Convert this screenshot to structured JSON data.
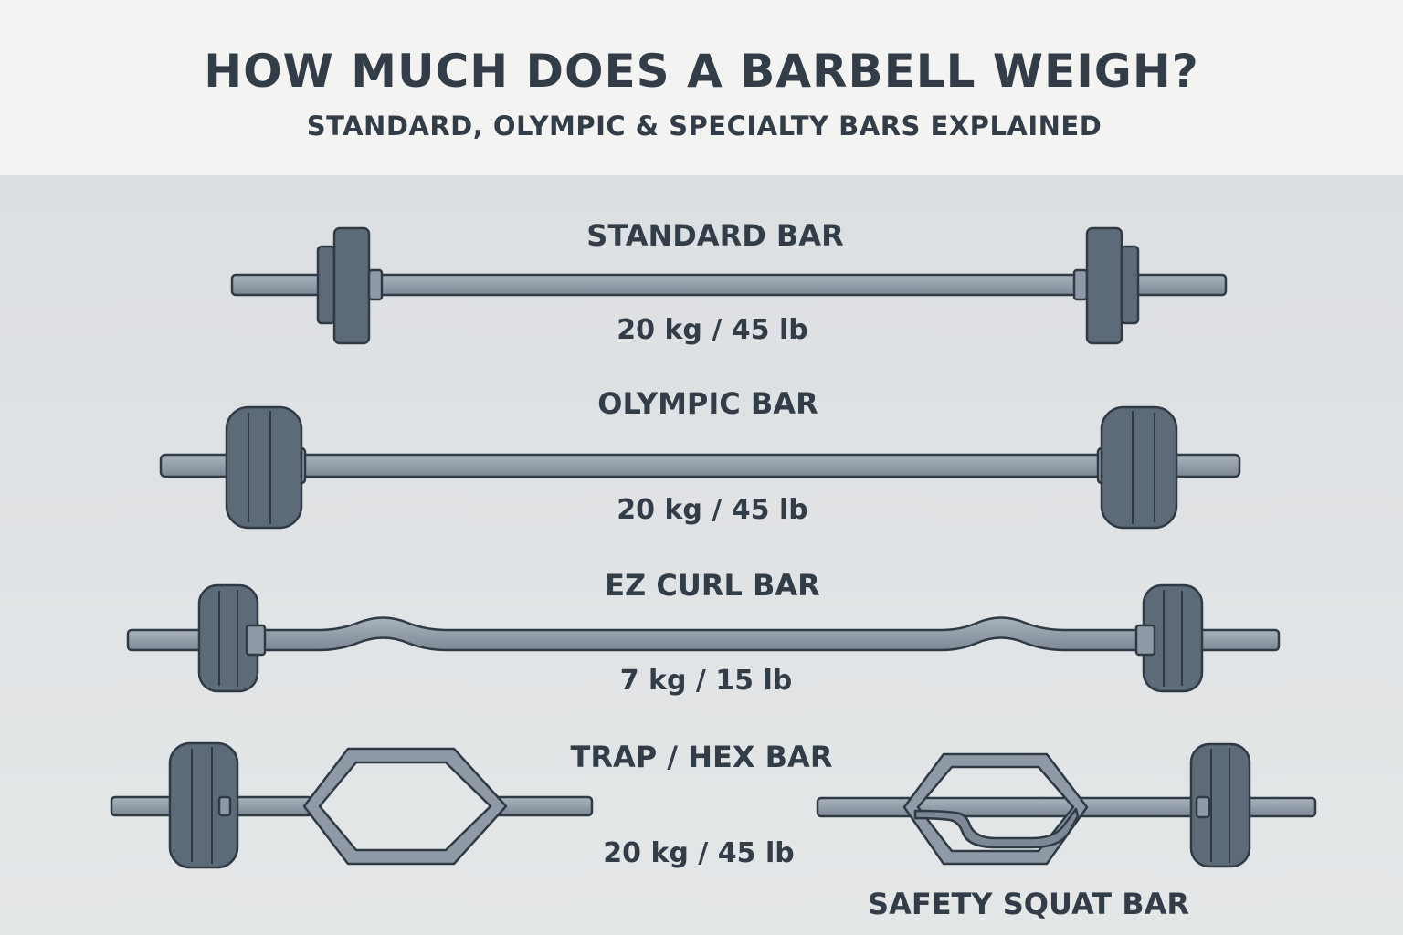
{
  "title": "HOW MUCH DOES A BARBELL WEIGH?",
  "subtitle": "STANDARD, OLYMPIC & SPECIALTY BARS EXPLAINED",
  "bars": [
    {
      "name": "STANDARD BAR",
      "weight": "20 kg / 45 lb"
    },
    {
      "name": "OLYMPIC BAR",
      "weight": "20 kg / 45 lb"
    },
    {
      "name": "EZ CURL BAR",
      "weight": "7 kg / 15 lb"
    },
    {
      "name": "TRAP / HEX BAR",
      "weight": "20 kg / 45 lb"
    },
    {
      "name": "SAFETY SQUAT BAR"
    }
  ],
  "colors": {
    "header_bg": "#f3f3f2",
    "body_bg": "#e1e5e8",
    "text": "#333d47",
    "bar_fill": "#8f9aa6",
    "plate_fill": "#5d6a78",
    "outline": "#2f3a45"
  }
}
